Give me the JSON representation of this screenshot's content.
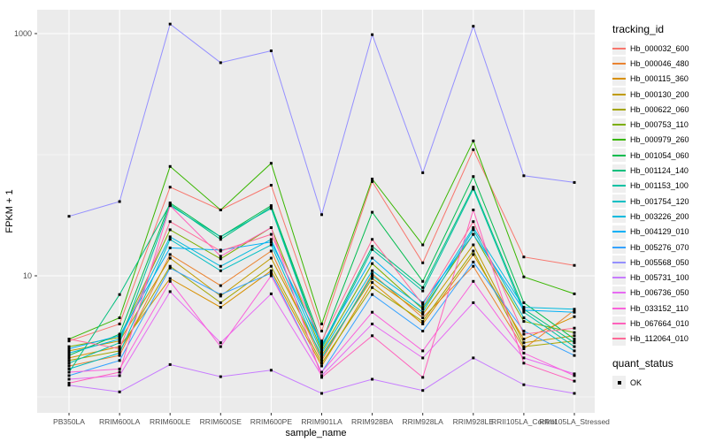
{
  "figure": {
    "background": "#FFFFFF",
    "panel_background": "#EBEBEB",
    "grid_color": "#FFFFFF",
    "tick_color": "#333333",
    "tick_label_color": "#4D4D4D",
    "axis_title_color": "#000000",
    "point_color": "#000000"
  },
  "chart_data": {
    "type": "line",
    "title": "",
    "xlabel": "sample_name",
    "ylabel": "FPKM + 1",
    "y_scale": "log10",
    "y_ticks": [
      10,
      1000
    ],
    "y_minor": [
      1,
      100
    ],
    "ylim": [
      0.74,
      1600
    ],
    "grid": true,
    "legend_position": "right",
    "point_shape": "black-square",
    "categories": [
      "PB350LA",
      "RRIM600LA",
      "RRIM600LE",
      "RRIM600SE",
      "RRIM600PE",
      "RRIM901LA",
      "RRIM928BA",
      "RRIM928LA",
      "RRIM928LE",
      "RRII105LA_Control",
      "RRII105LA_Stressed"
    ],
    "series": [
      {
        "name": "Hb_000032_600",
        "color": "#F8766D",
        "values": [
          2.9,
          4.0,
          54,
          35,
          56,
          3.5,
          60,
          12.8,
          110,
          14.3,
          12.2
        ]
      },
      {
        "name": "Hb_000046_480",
        "color": "#EA8331",
        "values": [
          1.8,
          2.2,
          15,
          8.3,
          16,
          2.0,
          10.4,
          4.5,
          12,
          2.5,
          5.2
        ]
      },
      {
        "name": "Hb_000115_360",
        "color": "#D89000",
        "values": [
          2.1,
          2.6,
          9.5,
          5.5,
          11,
          1.8,
          8.8,
          4.0,
          15,
          3.0,
          4.6
        ]
      },
      {
        "name": "Hb_000130_200",
        "color": "#C09B00",
        "values": [
          2.4,
          2.9,
          14,
          6.8,
          14,
          2.2,
          9.5,
          4.8,
          18,
          2.8,
          3.2
        ]
      },
      {
        "name": "Hb_000622_060",
        "color": "#A3A500",
        "values": [
          2.0,
          2.4,
          12,
          6.0,
          12,
          1.9,
          8.0,
          4.2,
          16,
          2.6,
          2.9
        ]
      },
      {
        "name": "Hb_000753_110",
        "color": "#7CAE00",
        "values": [
          2.6,
          3.1,
          24,
          13.8,
          25,
          2.4,
          12.6,
          5.3,
          22,
          4.2,
          3.4
        ]
      },
      {
        "name": "Hb_000979_260",
        "color": "#39B600",
        "values": [
          3.0,
          4.5,
          80,
          35,
          85,
          4.0,
          63,
          18,
          130,
          9.8,
          7.1
        ]
      },
      {
        "name": "Hb_001054_060",
        "color": "#00BB4E",
        "values": [
          2.2,
          3.3,
          40,
          21,
          38,
          2.8,
          33.5,
          9.0,
          66,
          6.0,
          3.0
        ]
      },
      {
        "name": "Hb_001124_140",
        "color": "#00BF7D",
        "values": [
          1.6,
          7.0,
          39,
          20,
          37,
          2.6,
          17.5,
          8.0,
          54,
          5.3,
          2.8
        ]
      },
      {
        "name": "Hb_001153_100",
        "color": "#00C1A3",
        "values": [
          1.9,
          2.8,
          38,
          21,
          36,
          2.5,
          16.5,
          7.5,
          52,
          5.0,
          2.6
        ]
      },
      {
        "name": "Hb_001754_120",
        "color": "#00BFC4",
        "values": [
          1.7,
          2.3,
          20,
          11,
          18,
          2.1,
          10,
          5.0,
          24,
          4.5,
          2.4
        ]
      },
      {
        "name": "Hb_003226_200",
        "color": "#00BADE",
        "values": [
          2.3,
          3.0,
          21,
          12,
          20,
          2.3,
          11,
          5.5,
          25,
          5.5,
          5.3
        ]
      },
      {
        "name": "Hb_004129_010",
        "color": "#00B0F6",
        "values": [
          2.5,
          3.2,
          17,
          16.3,
          19,
          2.7,
          14,
          6.0,
          22,
          5.2,
          5.0
        ]
      },
      {
        "name": "Hb_005276_070",
        "color": "#35A2FF",
        "values": [
          1.5,
          2.0,
          11.6,
          7.0,
          10.5,
          1.6,
          7.0,
          3.5,
          13,
          3.5,
          2.2
        ]
      },
      {
        "name": "Hb_005568_050",
        "color": "#9590FF",
        "values": [
          31,
          41,
          1200,
          575,
          720,
          32,
          980,
          71,
          1150,
          67,
          59
        ]
      },
      {
        "name": "Hb_005731_100",
        "color": "#C77CFF",
        "values": [
          1.25,
          1.1,
          1.85,
          1.47,
          1.66,
          1.07,
          1.4,
          1.13,
          2.1,
          1.26,
          1.07
        ]
      },
      {
        "name": "Hb_006736_050",
        "color": "#E76BF3",
        "values": [
          1.4,
          1.5,
          7.4,
          2.8,
          7.1,
          1.5,
          4.0,
          2.1,
          6.0,
          2.1,
          1.55
        ]
      },
      {
        "name": "Hb_033152_110",
        "color": "#FA62DB",
        "values": [
          1.6,
          1.7,
          9.0,
          2.6,
          10,
          1.6,
          5.0,
          2.4,
          9.0,
          2.3,
          1.5
        ]
      },
      {
        "name": "Hb_067664_010",
        "color": "#FF62BC",
        "values": [
          1.3,
          1.6,
          38,
          14.5,
          25,
          1.45,
          3.2,
          1.45,
          35,
          1.9,
          1.35
        ]
      },
      {
        "name": "Hb_112064_010",
        "color": "#FF6A98",
        "values": [
          3.0,
          2.5,
          28,
          16,
          22,
          2.9,
          20,
          5.8,
          28,
          3.3,
          3.7
        ]
      }
    ]
  },
  "legend": {
    "tracking_title": "tracking_id",
    "quant_title": "quant_status",
    "quant_items": [
      {
        "label": "OK"
      }
    ],
    "key_background": "#EFEFEF"
  }
}
